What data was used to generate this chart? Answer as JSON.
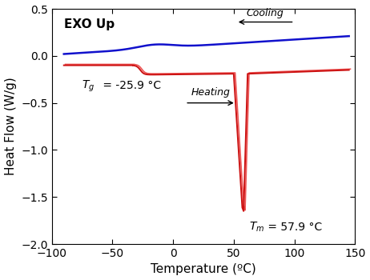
{
  "xlabel": "Temperature (ºC)",
  "ylabel": "Heat Flow (W/g)",
  "xlim": [
    -100,
    150
  ],
  "ylim": [
    -2.0,
    0.5
  ],
  "yticks": [
    -2.0,
    -1.5,
    -1.0,
    -0.5,
    0.0,
    0.5
  ],
  "xticks": [
    -100,
    -50,
    0,
    50,
    100,
    150
  ],
  "exo_up_text": "EXO Up",
  "cooling_label": "Cooling",
  "heating_label": "Heating",
  "tg_val": " = -25.9 °C",
  "tm_val": " = 57.9 °C",
  "cooling_color": "#1111CC",
  "heating_color1": "#CC1111",
  "heating_color2": "#EE5555",
  "background_color": "#ffffff",
  "axis_color": "#000000"
}
